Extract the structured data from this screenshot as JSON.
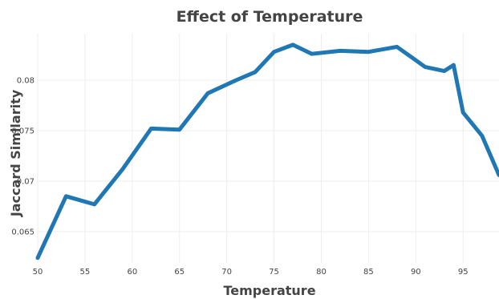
{
  "chart_data": {
    "type": "line",
    "title": "Effect of Temperature",
    "xlabel": "Temperature",
    "ylabel": "Jaccard Similarity",
    "xlim": [
      50,
      98.8
    ],
    "ylim": [
      0.0619,
      0.0846
    ],
    "x_ticks": [
      50,
      55,
      60,
      65,
      70,
      75,
      80,
      85,
      90,
      95
    ],
    "y_ticks": [
      0.065,
      0.07,
      0.075,
      0.08
    ],
    "y_tick_labels": [
      "0.065",
      "0.07",
      "0.075",
      "0.08"
    ],
    "grid": true,
    "line_color": "#1f77b4",
    "series": [
      {
        "x": [
          50,
          53,
          56,
          59,
          62,
          65,
          68,
          71,
          73,
          75,
          77,
          79,
          82,
          85,
          88,
          91,
          93,
          94,
          95,
          97,
          98.8
        ],
        "y": [
          0.0624,
          0.0685,
          0.0677,
          0.0712,
          0.0752,
          0.0751,
          0.0787,
          0.08,
          0.0808,
          0.0828,
          0.0835,
          0.0826,
          0.0829,
          0.0828,
          0.0833,
          0.0813,
          0.0809,
          0.0815,
          0.0768,
          0.0745,
          0.0706
        ]
      }
    ]
  }
}
